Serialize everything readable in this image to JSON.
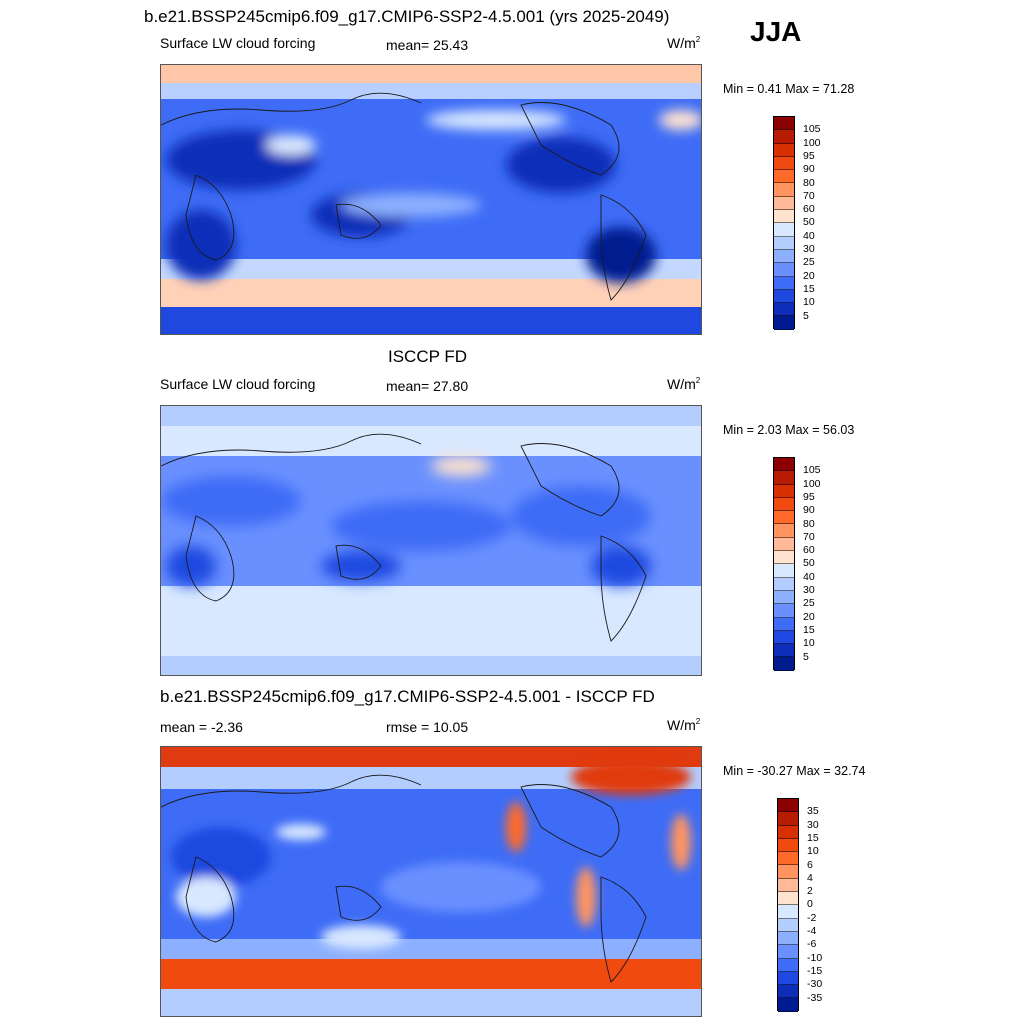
{
  "header": {
    "title": "b.e21.BSSP245cmip6.f09_g17.CMIP6-SSP2-4.5.001 (yrs 2025-2049)",
    "season": "JJA"
  },
  "panels": [
    {
      "id": "model",
      "title": "",
      "left_label": "Surface LW cloud forcing",
      "center_label": "mean=  25.43",
      "unit": "W/m",
      "unit_sup": "2",
      "minmax": "Min =   0.41 Max =  71.28"
    },
    {
      "id": "obs",
      "title": "ISCCP FD",
      "left_label": "Surface LW cloud forcing",
      "center_label": "mean=  27.80",
      "unit": "W/m",
      "unit_sup": "2",
      "minmax": "Min =   2.03 Max =  56.03"
    },
    {
      "id": "diff",
      "title": "b.e21.BSSP245cmip6.f09_g17.CMIP6-SSP2-4.5.001 - ISCCP FD",
      "left_label": "mean =  -2.36",
      "center_label": "rmse =  10.05",
      "unit": "W/m",
      "unit_sup": "2",
      "minmax": "Min = -30.27 Max =  32.74"
    }
  ],
  "colorbars": {
    "absolute": {
      "labels": [
        "105",
        "100",
        "95",
        "90",
        "80",
        "70",
        "60",
        "50",
        "40",
        "30",
        "25",
        "20",
        "15",
        "10",
        "5"
      ],
      "colors": [
        "#8b0000",
        "#b71c00",
        "#d83000",
        "#f04a10",
        "#ff6a2a",
        "#ff9460",
        "#ffb898",
        "#ffe3cf",
        "#d8e8ff",
        "#b4cdff",
        "#8cb0ff",
        "#6a90ff",
        "#3e6cf6",
        "#1f48e0",
        "#0e2db8",
        "#001a8f"
      ]
    },
    "difference": {
      "labels": [
        "35",
        "30",
        "15",
        "10",
        "6",
        "4",
        "2",
        "0",
        "-2",
        "-4",
        "-6",
        "-10",
        "-15",
        "-30",
        "-35"
      ],
      "colors": [
        "#8b0000",
        "#b71c00",
        "#d83000",
        "#f04a10",
        "#ff6a2a",
        "#ff9460",
        "#ffb898",
        "#ffe3cf",
        "#d8e8ff",
        "#b4cdff",
        "#8cb0ff",
        "#6a90ff",
        "#3e6cf6",
        "#1f48e0",
        "#0e2db8",
        "#001a8f"
      ]
    }
  }
}
